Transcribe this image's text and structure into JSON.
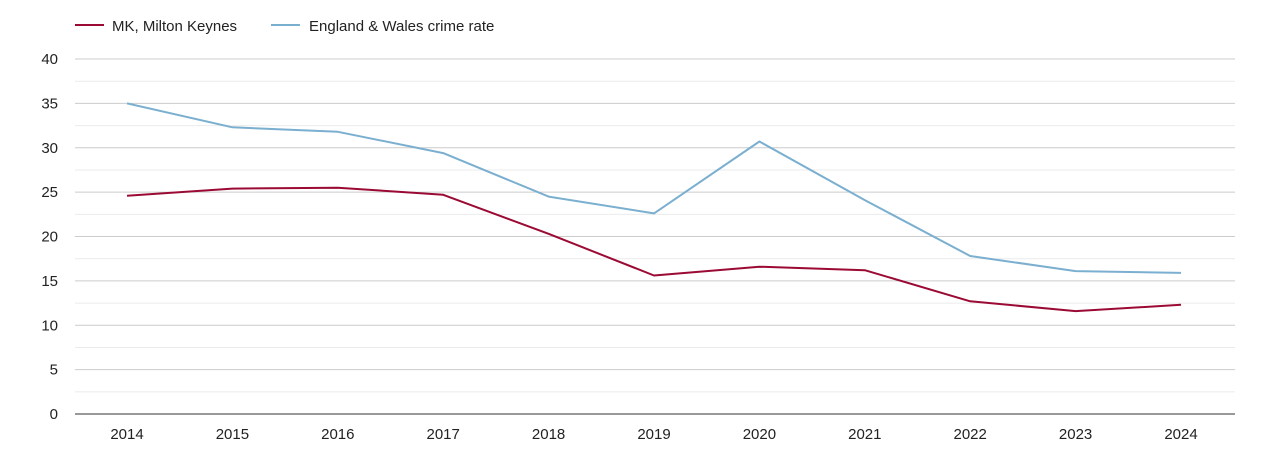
{
  "chart_data": {
    "type": "line",
    "title": "",
    "xlabel": "",
    "ylabel": "",
    "x": [
      "2014",
      "2015",
      "2016",
      "2017",
      "2018",
      "2019",
      "2020",
      "2021",
      "2022",
      "2023",
      "2024"
    ],
    "ylim": [
      0,
      40
    ],
    "yticks": [
      "0",
      "5",
      "10",
      "15",
      "20",
      "25",
      "30",
      "35",
      "40"
    ],
    "grid": true,
    "legend": "top-left",
    "series": [
      {
        "name": "MK, Milton Keynes",
        "color": "#9b0a34",
        "values": [
          24.6,
          25.4,
          25.5,
          24.7,
          20.3,
          15.6,
          16.6,
          16.2,
          12.7,
          11.6,
          12.3
        ]
      },
      {
        "name": "England & Wales crime rate",
        "color": "#7bafd0",
        "values": [
          35.0,
          32.3,
          31.8,
          29.4,
          24.5,
          22.6,
          30.7,
          24.1,
          17.8,
          16.1,
          15.9
        ]
      }
    ]
  }
}
